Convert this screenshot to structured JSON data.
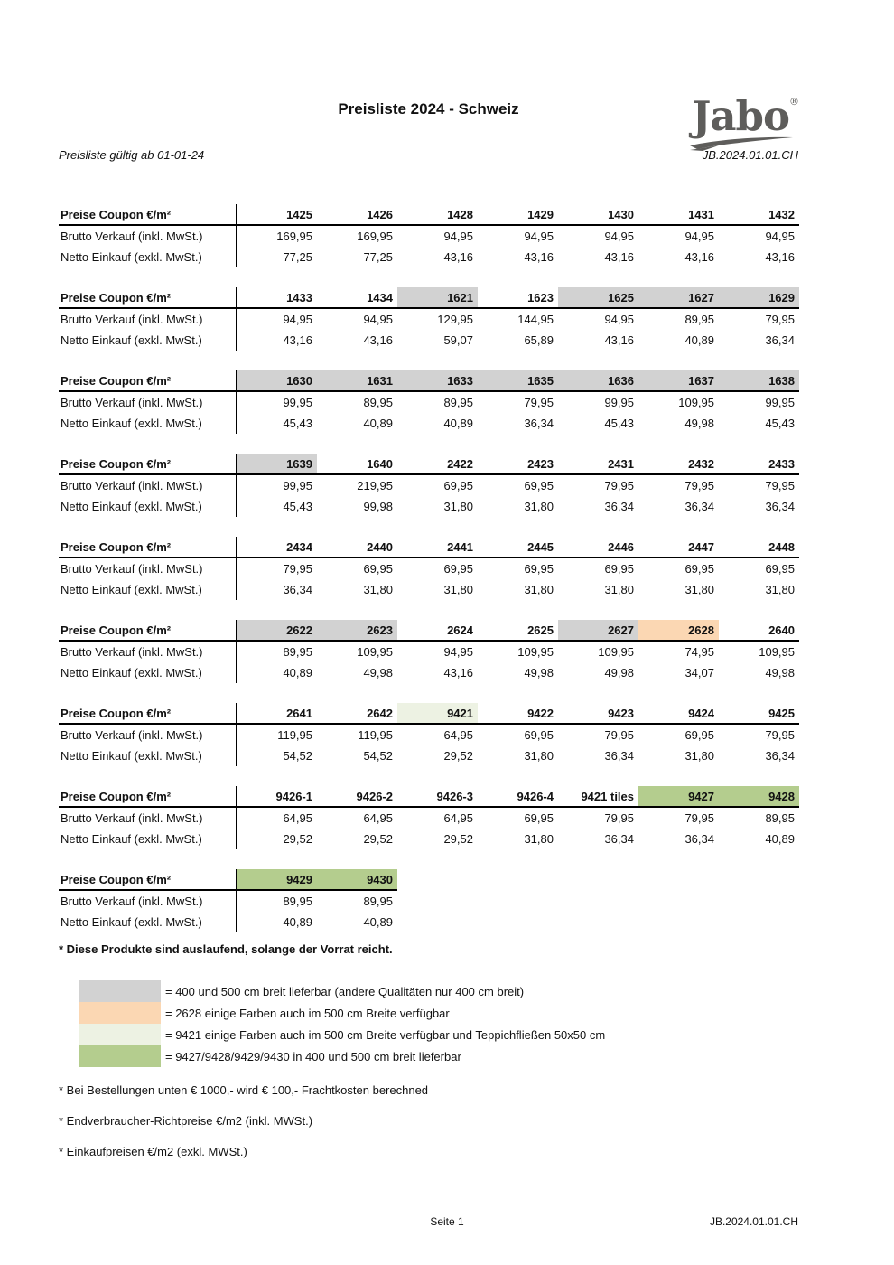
{
  "page": {
    "title": "Preisliste 2024 - Schweiz",
    "valid_note": "Preisliste gültig ab 01-01-24",
    "doc_code": "JB.2024.01.01.CH",
    "logo": {
      "text": "Jabo",
      "reg": "®"
    }
  },
  "table_common": {
    "col0_header": "Preise Coupon €/m²",
    "row1_label": "Brutto Verkauf (inkl. MwSt.)",
    "row2_label": "Netto Einkauf (exkl. MwSt.)"
  },
  "colors": {
    "gray": "#d2d2d2",
    "orange": "#fbd7b3",
    "cream": "#edf2e3",
    "green": "#b4cd8e"
  },
  "tables": [
    {
      "columns": [
        {
          "code": "1425",
          "hl": null
        },
        {
          "code": "1426",
          "hl": null
        },
        {
          "code": "1428",
          "hl": null
        },
        {
          "code": "1429",
          "hl": null
        },
        {
          "code": "1430",
          "hl": null
        },
        {
          "code": "1431",
          "hl": null
        },
        {
          "code": "1432",
          "hl": null
        }
      ],
      "brutto": [
        "169,95",
        "169,95",
        "94,95",
        "94,95",
        "94,95",
        "94,95",
        "94,95"
      ],
      "netto": [
        "77,25",
        "77,25",
        "43,16",
        "43,16",
        "43,16",
        "43,16",
        "43,16"
      ]
    },
    {
      "columns": [
        {
          "code": "1433",
          "hl": null
        },
        {
          "code": "1434",
          "hl": null
        },
        {
          "code": "1621",
          "hl": "gray"
        },
        {
          "code": "1623",
          "hl": null
        },
        {
          "code": "1625",
          "hl": "gray"
        },
        {
          "code": "1627",
          "hl": "gray"
        },
        {
          "code": "1629",
          "hl": "gray"
        }
      ],
      "brutto": [
        "94,95",
        "94,95",
        "129,95",
        "144,95",
        "94,95",
        "89,95",
        "79,95"
      ],
      "netto": [
        "43,16",
        "43,16",
        "59,07",
        "65,89",
        "43,16",
        "40,89",
        "36,34"
      ]
    },
    {
      "columns": [
        {
          "code": "1630",
          "hl": "gray"
        },
        {
          "code": "1631",
          "hl": "gray"
        },
        {
          "code": "1633",
          "hl": "gray"
        },
        {
          "code": "1635",
          "hl": "gray"
        },
        {
          "code": "1636",
          "hl": "gray"
        },
        {
          "code": "1637",
          "hl": "gray"
        },
        {
          "code": "1638",
          "hl": "gray"
        }
      ],
      "brutto": [
        "99,95",
        "89,95",
        "89,95",
        "79,95",
        "99,95",
        "109,95",
        "99,95"
      ],
      "netto": [
        "45,43",
        "40,89",
        "40,89",
        "36,34",
        "45,43",
        "49,98",
        "45,43"
      ]
    },
    {
      "columns": [
        {
          "code": "1639",
          "hl": "gray"
        },
        {
          "code": "1640",
          "hl": null
        },
        {
          "code": "2422",
          "hl": null
        },
        {
          "code": "2423",
          "hl": null
        },
        {
          "code": "2431",
          "hl": null
        },
        {
          "code": "2432",
          "hl": null
        },
        {
          "code": "2433",
          "hl": null
        }
      ],
      "brutto": [
        "99,95",
        "219,95",
        "69,95",
        "69,95",
        "79,95",
        "79,95",
        "79,95"
      ],
      "netto": [
        "45,43",
        "99,98",
        "31,80",
        "31,80",
        "36,34",
        "36,34",
        "36,34"
      ]
    },
    {
      "columns": [
        {
          "code": "2434",
          "hl": null
        },
        {
          "code": "2440",
          "hl": null
        },
        {
          "code": "2441",
          "hl": null
        },
        {
          "code": "2445",
          "hl": null
        },
        {
          "code": "2446",
          "hl": null
        },
        {
          "code": "2447",
          "hl": null
        },
        {
          "code": "2448",
          "hl": null
        }
      ],
      "brutto": [
        "79,95",
        "69,95",
        "69,95",
        "69,95",
        "69,95",
        "69,95",
        "69,95"
      ],
      "netto": [
        "36,34",
        "31,80",
        "31,80",
        "31,80",
        "31,80",
        "31,80",
        "31,80"
      ]
    },
    {
      "columns": [
        {
          "code": "2622",
          "hl": "gray"
        },
        {
          "code": "2623",
          "hl": "gray"
        },
        {
          "code": "2624",
          "hl": null
        },
        {
          "code": "2625",
          "hl": null
        },
        {
          "code": "2627",
          "hl": "gray"
        },
        {
          "code": "2628",
          "hl": "orange"
        },
        {
          "code": "2640",
          "hl": null
        }
      ],
      "brutto": [
        "89,95",
        "109,95",
        "94,95",
        "109,95",
        "109,95",
        "74,95",
        "109,95"
      ],
      "netto": [
        "40,89",
        "49,98",
        "43,16",
        "49,98",
        "49,98",
        "34,07",
        "49,98"
      ]
    },
    {
      "columns": [
        {
          "code": "2641",
          "hl": null
        },
        {
          "code": "2642",
          "hl": null
        },
        {
          "code": "9421",
          "hl": "cream"
        },
        {
          "code": "9422",
          "hl": null
        },
        {
          "code": "9423",
          "hl": null
        },
        {
          "code": "9424",
          "hl": null
        },
        {
          "code": "9425",
          "hl": null
        }
      ],
      "brutto": [
        "119,95",
        "119,95",
        "64,95",
        "69,95",
        "79,95",
        "69,95",
        "79,95"
      ],
      "netto": [
        "54,52",
        "54,52",
        "29,52",
        "31,80",
        "36,34",
        "31,80",
        "36,34"
      ]
    },
    {
      "columns": [
        {
          "code": "9426-1",
          "hl": null
        },
        {
          "code": "9426-2",
          "hl": null
        },
        {
          "code": "9426-3",
          "hl": null
        },
        {
          "code": "9426-4",
          "hl": null
        },
        {
          "code": "9421 tiles",
          "hl": null
        },
        {
          "code": "9427",
          "hl": "green"
        },
        {
          "code": "9428",
          "hl": "green"
        }
      ],
      "brutto": [
        "64,95",
        "64,95",
        "64,95",
        "69,95",
        "79,95",
        "79,95",
        "89,95"
      ],
      "netto": [
        "29,52",
        "29,52",
        "29,52",
        "31,80",
        "36,34",
        "36,34",
        "40,89"
      ]
    },
    {
      "columns": [
        {
          "code": "9429",
          "hl": "green"
        },
        {
          "code": "9430",
          "hl": "green"
        }
      ],
      "brutto": [
        "89,95",
        "89,95"
      ],
      "netto": [
        "40,89",
        "40,89"
      ]
    }
  ],
  "notes": {
    "discontinued": "* Diese Produkte sind auslaufend, solange der Vorrat reicht.",
    "footnotes": [
      "* Bei Bestellungen unten € 1000,- wird € 100,- Frachtkosten berechned",
      "* Endverbraucher-Richtpreise €/m2 (inkl. MWSt.)",
      "* Einkaufpreisen €/m2 (exkl. MWSt.)"
    ]
  },
  "legend": [
    {
      "color": "gray",
      "text": "= 400 und 500 cm breit lieferbar (andere Qualitäten nur 400 cm breit)"
    },
    {
      "color": "orange",
      "text": "= 2628 einige Farben auch im 500 cm Breite verfügbar"
    },
    {
      "color": "cream",
      "text": "= 9421 einige Farben auch im 500 cm Breite verfügbar und Teppichfließen 50x50 cm"
    },
    {
      "color": "green",
      "text": "= 9427/9428/9429/9430 in 400 und 500 cm breit lieferbar"
    }
  ],
  "footer": {
    "page_number": "Seite 1",
    "doc_code": "JB.2024.01.01.CH"
  }
}
